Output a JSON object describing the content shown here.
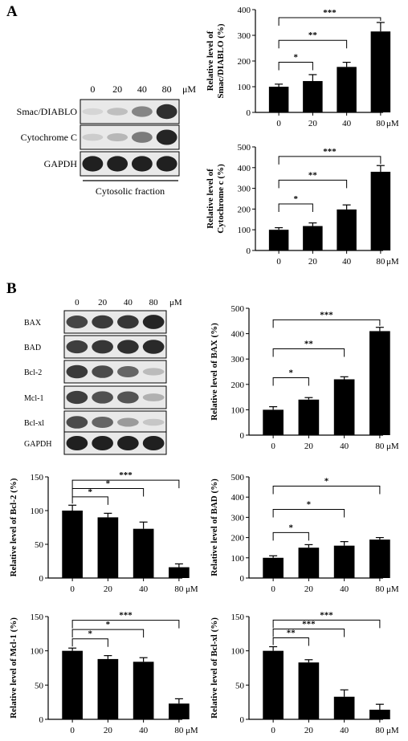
{
  "panels": {
    "a": "A",
    "b": "B"
  },
  "blot_a": {
    "concentrations": [
      "0",
      "20",
      "40",
      "80"
    ],
    "unit": "μM",
    "rows": [
      {
        "label": "Smac/DIABLO",
        "intensity": [
          0.08,
          0.18,
          0.45,
          0.85
        ]
      },
      {
        "label": "Cytochrome C",
        "intensity": [
          0.12,
          0.22,
          0.5,
          0.9
        ]
      },
      {
        "label": "GAPDH",
        "intensity": [
          0.92,
          0.92,
          0.92,
          0.92
        ]
      }
    ],
    "caption": "Cytosolic fraction"
  },
  "blot_b": {
    "concentrations": [
      "0",
      "20",
      "40",
      "80"
    ],
    "unit": "μM",
    "rows": [
      {
        "label": "BAX",
        "intensity": [
          0.75,
          0.8,
          0.82,
          0.9
        ]
      },
      {
        "label": "BAD",
        "intensity": [
          0.78,
          0.82,
          0.85,
          0.88
        ]
      },
      {
        "label": "Bcl-2",
        "intensity": [
          0.8,
          0.72,
          0.6,
          0.2
        ]
      },
      {
        "label": "Mcl-1",
        "intensity": [
          0.78,
          0.7,
          0.68,
          0.25
        ]
      },
      {
        "label": "Bcl-xl",
        "intensity": [
          0.72,
          0.6,
          0.35,
          0.15
        ]
      },
      {
        "label": "GAPDH",
        "intensity": [
          0.92,
          0.92,
          0.92,
          0.92
        ]
      }
    ]
  },
  "chart_data": [
    {
      "id": "smac",
      "type": "bar",
      "categories": [
        "0",
        "20",
        "40",
        "80"
      ],
      "unit": "μM",
      "values": [
        100,
        122,
        177,
        315
      ],
      "errors": [
        10,
        25,
        18,
        35
      ],
      "ylabel": [
        "Relative level of",
        "Smac/DIABLO (%)"
      ],
      "ylim": [
        0,
        400
      ],
      "yticks": [
        0,
        100,
        200,
        300,
        400
      ],
      "sig": [
        {
          "to": 1,
          "label": "*"
        },
        {
          "to": 2,
          "label": "**"
        },
        {
          "to": 3,
          "label": "***"
        }
      ]
    },
    {
      "id": "cytc",
      "type": "bar",
      "categories": [
        "0",
        "20",
        "40",
        "80"
      ],
      "unit": "μM",
      "values": [
        100,
        118,
        198,
        380
      ],
      "errors": [
        10,
        15,
        22,
        30
      ],
      "ylabel": [
        "Relative level of",
        "Cytochrome c (%)"
      ],
      "ylim": [
        0,
        500
      ],
      "yticks": [
        0,
        100,
        200,
        300,
        400,
        500
      ],
      "sig": [
        {
          "to": 1,
          "label": "*"
        },
        {
          "to": 2,
          "label": "**"
        },
        {
          "to": 3,
          "label": "***"
        }
      ]
    },
    {
      "id": "bax",
      "type": "bar",
      "categories": [
        "0",
        "20",
        "40",
        "80"
      ],
      "unit": "μM",
      "values": [
        100,
        140,
        220,
        410
      ],
      "errors": [
        12,
        8,
        10,
        15
      ],
      "ylabel": [
        "Relative level of BAX (%)"
      ],
      "ylim": [
        0,
        500
      ],
      "yticks": [
        0,
        100,
        200,
        300,
        400,
        500
      ],
      "sig": [
        {
          "to": 1,
          "label": "*"
        },
        {
          "to": 2,
          "label": "**"
        },
        {
          "to": 3,
          "label": "***"
        }
      ]
    },
    {
      "id": "bcl2",
      "type": "bar",
      "categories": [
        "0",
        "20",
        "40",
        "80"
      ],
      "unit": "μM",
      "values": [
        100,
        90,
        73,
        16
      ],
      "errors": [
        8,
        6,
        10,
        5
      ],
      "ylabel": [
        "Relative level of Bcl-2 (%)"
      ],
      "ylim": [
        0,
        150
      ],
      "yticks": [
        0,
        50,
        100,
        150
      ],
      "sig": [
        {
          "to": 1,
          "label": "*"
        },
        {
          "to": 2,
          "label": "*"
        },
        {
          "to": 3,
          "label": "***"
        }
      ]
    },
    {
      "id": "bad",
      "type": "bar",
      "categories": [
        "0",
        "20",
        "40",
        "80"
      ],
      "unit": "μM",
      "values": [
        100,
        150,
        160,
        190
      ],
      "errors": [
        10,
        15,
        20,
        10
      ],
      "ylabel": [
        "Relative level of BAD (%)"
      ],
      "ylim": [
        0,
        500
      ],
      "yticks": [
        0,
        100,
        200,
        300,
        400,
        500
      ],
      "sig": [
        {
          "to": 1,
          "label": "*"
        },
        {
          "to": 2,
          "label": "*"
        },
        {
          "to": 3,
          "label": "*"
        }
      ]
    },
    {
      "id": "mcl1",
      "type": "bar",
      "categories": [
        "0",
        "20",
        "40",
        "80"
      ],
      "unit": "μM",
      "values": [
        100,
        88,
        84,
        23
      ],
      "errors": [
        4,
        5,
        6,
        7
      ],
      "ylabel": [
        "Relative level of Mcl-1 (%)"
      ],
      "ylim": [
        0,
        150
      ],
      "yticks": [
        0,
        50,
        100,
        150
      ],
      "sig": [
        {
          "to": 1,
          "label": "*"
        },
        {
          "to": 2,
          "label": "*"
        },
        {
          "to": 3,
          "label": "***"
        }
      ]
    },
    {
      "id": "bclxl",
      "type": "bar",
      "categories": [
        "0",
        "20",
        "40",
        "80"
      ],
      "unit": "μM",
      "values": [
        100,
        83,
        33,
        14
      ],
      "errors": [
        6,
        4,
        10,
        8
      ],
      "ylabel": [
        "Relative level of Bcl-xl (%)"
      ],
      "ylim": [
        0,
        150
      ],
      "yticks": [
        0,
        50,
        100,
        150
      ],
      "sig": [
        {
          "to": 1,
          "label": "**"
        },
        {
          "to": 2,
          "label": "***"
        },
        {
          "to": 3,
          "label": "***"
        }
      ]
    }
  ]
}
